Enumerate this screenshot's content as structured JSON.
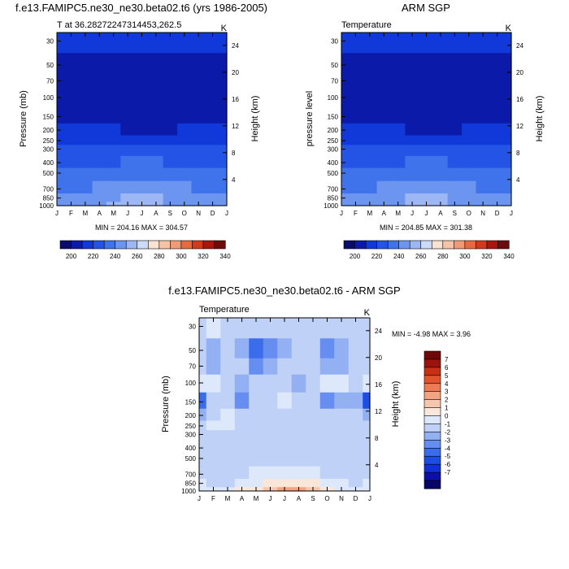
{
  "colors": {
    "abs_scale": [
      "#0b0b6e",
      "#0b1aa8",
      "#1138d8",
      "#2354e6",
      "#3f73ec",
      "#6c95f0",
      "#9db6f4",
      "#cddbf8",
      "#f8e3d3",
      "#f6c3a6",
      "#f09a76",
      "#e6693f",
      "#d23a1c",
      "#a8160e",
      "#6e0b0b"
    ],
    "diff_scale": [
      "#06066a",
      "#0a0fa8",
      "#1031d6",
      "#1e4de6",
      "#3b6cec",
      "#668ef0",
      "#93b0f3",
      "#bfd1f6",
      "#dde8fb",
      "#fbe7da",
      "#f7c7ad",
      "#f2a381",
      "#ed7b55",
      "#e3532d",
      "#c83015",
      "#9a130c",
      "#6e0707"
    ]
  },
  "panels": {
    "model": {
      "title": "f.e13.FAMIPC5.ne30_ne30.beta02.t6 (yrs 1986-2005)",
      "left_title": "T at 36.28272247314453,262.5",
      "right_title": "K",
      "ylabel": "Pressure (mb)",
      "y2label": "Height (km)",
      "minmax": "MIN = 204.16 MAX = 304.57"
    },
    "obs": {
      "title": "ARM SGP",
      "left_title": "Temperature",
      "right_title": "K",
      "ylabel": "pressure level",
      "y2label": "Height (km)",
      "minmax": "MIN = 204.85 MAX = 301.38"
    },
    "diff": {
      "title": "f.e13.FAMIPC5.ne30_ne30.beta02.t6 - ARM SGP",
      "left_title": "Temperature",
      "right_title": "K",
      "ylabel": "Pressure (mb)",
      "y2label": "Height (km)",
      "minmax": "MIN =  -4.98 MAX =   3.96"
    }
  },
  "chart_data": [
    {
      "type": "heatmap",
      "title": "f.e13.FAMIPC5.ne30_ne30.beta02.t6 (yrs 1986-2005)",
      "xlabel": "",
      "ylabel": "Pressure (mb)",
      "y2label": "Height (km)",
      "x": [
        "J",
        "F",
        "M",
        "A",
        "M",
        "J",
        "J",
        "A",
        "S",
        "O",
        "N",
        "D",
        "J"
      ],
      "y": [
        30,
        50,
        70,
        100,
        150,
        200,
        250,
        300,
        400,
        500,
        700,
        850,
        1000
      ],
      "y2_ticks": [
        4,
        8,
        12,
        16,
        20,
        24
      ],
      "levels": [
        200,
        220,
        240,
        260,
        280,
        300,
        320,
        340
      ],
      "colorbar_ticks": [
        "200",
        "220",
        "240",
        "260",
        "280",
        "300",
        "320",
        "340"
      ],
      "values": [
        [
          223,
          224,
          225,
          226,
          227,
          228,
          227,
          226,
          225,
          223,
          222,
          223,
          223
        ],
        [
          214,
          214,
          215,
          215,
          216,
          217,
          216,
          216,
          215,
          215,
          214,
          214,
          214
        ],
        [
          210,
          209,
          209,
          210,
          211,
          212,
          212,
          211,
          210,
          210,
          209,
          210,
          210
        ],
        [
          213,
          211,
          209,
          209,
          208,
          208,
          208,
          208,
          209,
          209,
          209,
          211,
          213
        ],
        [
          219,
          218,
          217,
          214,
          211,
          209,
          209,
          209,
          211,
          213,
          215,
          217,
          219
        ],
        [
          225,
          225,
          224,
          222,
          220,
          218,
          218,
          218,
          219,
          221,
          222,
          224,
          225
        ],
        [
          232,
          232,
          232,
          232,
          232,
          232,
          232,
          232,
          232,
          232,
          232,
          232,
          232
        ],
        [
          241,
          241,
          242,
          243,
          245,
          247,
          248,
          247,
          245,
          243,
          242,
          241,
          241
        ],
        [
          253,
          253,
          254,
          256,
          259,
          262,
          263,
          262,
          259,
          256,
          254,
          253,
          253
        ],
        [
          262,
          262,
          264,
          267,
          271,
          275,
          276,
          275,
          271,
          267,
          264,
          262,
          262
        ],
        [
          276,
          276,
          279,
          283,
          288,
          292,
          294,
          293,
          288,
          283,
          278,
          276,
          276
        ],
        [
          284,
          284,
          287,
          292,
          297,
          301,
          303,
          302,
          297,
          291,
          286,
          284,
          284
        ],
        [
          288,
          288,
          291,
          296,
          300,
          304,
          304,
          303,
          299,
          293,
          289,
          288,
          288
        ]
      ]
    },
    {
      "type": "heatmap",
      "title": "ARM SGP",
      "xlabel": "",
      "ylabel": "pressure level",
      "y2label": "Height (km)",
      "x": [
        "J",
        "F",
        "M",
        "A",
        "M",
        "J",
        "J",
        "A",
        "S",
        "O",
        "N",
        "D",
        "J"
      ],
      "y": [
        30,
        50,
        70,
        100,
        150,
        200,
        250,
        300,
        400,
        500,
        700,
        850,
        1000
      ],
      "y2_ticks": [
        4,
        8,
        12,
        16,
        20,
        24
      ],
      "levels": [
        200,
        220,
        240,
        260,
        280,
        300,
        320,
        340
      ],
      "colorbar_ticks": [
        "200",
        "220",
        "240",
        "260",
        "280",
        "300",
        "320",
        "340"
      ],
      "values": [
        [
          224,
          225,
          226,
          226,
          227,
          228,
          227,
          226,
          225,
          224,
          223,
          223,
          224
        ],
        [
          215,
          215,
          215,
          216,
          216,
          217,
          217,
          216,
          215,
          215,
          214,
          214,
          215
        ],
        [
          211,
          210,
          209,
          210,
          210,
          211,
          211,
          211,
          210,
          210,
          209,
          210,
          211
        ],
        [
          212,
          210,
          209,
          209,
          208,
          207,
          207,
          207,
          208,
          208,
          209,
          210,
          212
        ],
        [
          219,
          217,
          214,
          213,
          211,
          209,
          208,
          209,
          210,
          212,
          214,
          216,
          219
        ],
        [
          225,
          224,
          223,
          222,
          220,
          218,
          218,
          218,
          219,
          220,
          222,
          224,
          225
        ],
        [
          232,
          232,
          232,
          232,
          232,
          232,
          232,
          232,
          232,
          232,
          232,
          232,
          232
        ],
        [
          241,
          241,
          242,
          243,
          245,
          247,
          248,
          247,
          245,
          243,
          242,
          241,
          241
        ],
        [
          253,
          253,
          254,
          256,
          259,
          262,
          263,
          262,
          259,
          256,
          254,
          253,
          253
        ],
        [
          262,
          262,
          264,
          267,
          271,
          275,
          276,
          275,
          271,
          267,
          264,
          262,
          262
        ],
        [
          276,
          276,
          279,
          283,
          288,
          292,
          294,
          293,
          288,
          283,
          278,
          276,
          276
        ],
        [
          284,
          284,
          287,
          292,
          297,
          300,
          301,
          300,
          296,
          291,
          286,
          284,
          284
        ],
        [
          288,
          288,
          291,
          295,
          299,
          301,
          301,
          300,
          297,
          293,
          289,
          288,
          288
        ]
      ]
    },
    {
      "type": "heatmap",
      "title": "f.e13.FAMIPC5.ne30_ne30.beta02.t6 - ARM SGP",
      "xlabel": "",
      "ylabel": "Pressure (mb)",
      "y2label": "Height (km)",
      "x": [
        "J",
        "F",
        "M",
        "A",
        "M",
        "J",
        "J",
        "A",
        "S",
        "O",
        "N",
        "D",
        "J"
      ],
      "y": [
        30,
        50,
        70,
        100,
        150,
        200,
        250,
        300,
        400,
        500,
        700,
        850,
        1000
      ],
      "y2_ticks": [
        4,
        8,
        12,
        16,
        20,
        24
      ],
      "levels": [
        -7,
        -6,
        -5,
        -4,
        -3,
        -2,
        -1,
        0,
        1,
        2,
        3,
        4,
        5,
        6,
        7
      ],
      "colorbar_ticks": [
        "7",
        "6",
        "5",
        "4",
        "3",
        "2",
        "1",
        "0",
        "-1",
        "-2",
        "-3",
        "-4",
        "-5",
        "-6",
        "-7"
      ],
      "values": [
        [
          -0.5,
          0.5,
          -0.5,
          -0.5,
          -1.0,
          -0.5,
          -0.5,
          -0.5,
          -0.5,
          -1.0,
          -1.0,
          -1.0,
          -0.5
        ],
        [
          -1.0,
          -1.5,
          -1.0,
          -1.5,
          -3.5,
          -3.0,
          -1.5,
          -1.0,
          -0.5,
          -2.5,
          -1.5,
          -1.0,
          -1.0
        ],
        [
          -1.0,
          -1.5,
          -1.0,
          -1.0,
          -2.5,
          -2.0,
          -1.0,
          -0.5,
          -1.0,
          -1.5,
          -1.5,
          -1.0,
          -1.0
        ],
        [
          0.5,
          0.0,
          -0.5,
          -1.5,
          -1.0,
          -0.5,
          -0.5,
          -1.5,
          -0.5,
          0.5,
          0.0,
          -0.5,
          0.0
        ],
        [
          -4.0,
          -1.0,
          -1.0,
          -3.0,
          -0.5,
          -1.0,
          0.5,
          -0.5,
          -1.0,
          -3.0,
          -1.5,
          -1.5,
          -4.5
        ],
        [
          -2.0,
          -0.5,
          0.0,
          -1.0,
          -0.5,
          -0.5,
          -0.5,
          -0.5,
          -0.5,
          -1.0,
          -0.5,
          -0.5,
          -2.0
        ],
        [
          -0.5,
          0.5,
          0.0,
          -0.5,
          -0.5,
          -0.5,
          -0.5,
          -0.5,
          -0.5,
          -0.5,
          -0.5,
          -0.5,
          -0.5
        ],
        [
          -0.5,
          -0.5,
          -0.5,
          -0.5,
          -0.5,
          -0.5,
          -0.5,
          -0.5,
          -0.5,
          -0.5,
          -0.5,
          -0.5,
          -0.5
        ],
        [
          -0.5,
          -0.5,
          -0.5,
          -0.5,
          -0.5,
          -0.5,
          -0.5,
          -0.5,
          -0.5,
          -0.5,
          -0.5,
          -0.5,
          -0.5
        ],
        [
          -0.5,
          -0.5,
          -0.5,
          -0.5,
          -0.5,
          -0.5,
          -0.5,
          -0.5,
          -0.5,
          -0.5,
          -0.5,
          -0.5,
          -0.5
        ],
        [
          -0.5,
          -0.5,
          -0.5,
          -0.5,
          0.5,
          0.5,
          0.5,
          0.5,
          0.5,
          -0.5,
          -0.5,
          -0.5,
          -0.5
        ],
        [
          0.0,
          -0.5,
          -0.5,
          0.0,
          0.5,
          1.0,
          1.5,
          1.5,
          1.0,
          0.5,
          0.0,
          -0.5,
          0.0
        ],
        [
          0.5,
          0.5,
          0.5,
          1.0,
          1.5,
          2.5,
          3.5,
          3.0,
          2.0,
          1.0,
          0.5,
          0.5,
          0.5
        ]
      ]
    }
  ]
}
